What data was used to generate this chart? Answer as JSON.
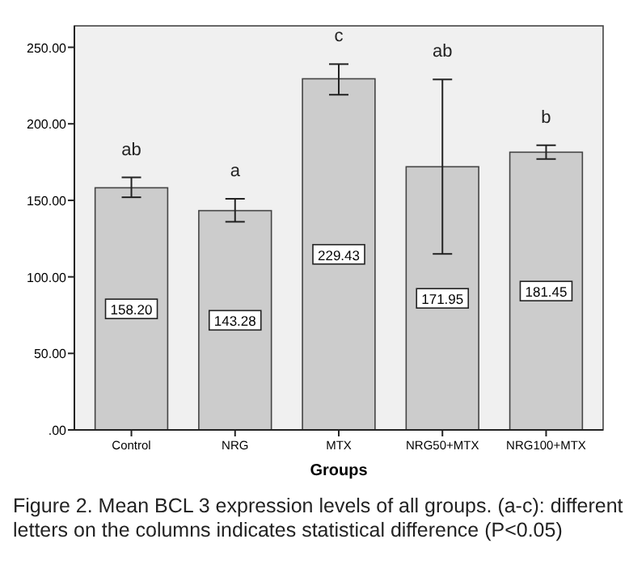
{
  "chart_data": {
    "type": "bar",
    "xlabel": "Groups",
    "categories": [
      "Control",
      "NRG",
      "MTX",
      "NRG50+MTX",
      "NRG100+MTX"
    ],
    "values": [
      158.2,
      143.28,
      229.43,
      171.95,
      181.45
    ],
    "color": "#cccccc",
    "value_labels": [
      "158.20",
      "143.28",
      "229.43",
      "171.95",
      "181.45"
    ],
    "errors": [
      [
        152,
        165
      ],
      [
        136,
        151
      ],
      [
        219,
        239
      ],
      [
        115,
        229
      ],
      [
        177,
        186
      ]
    ],
    "ylim": [
      0,
      264
    ],
    "yticks": [
      {
        "value": 0,
        "label": ".00"
      },
      {
        "value": 50,
        "label": "50.00"
      },
      {
        "value": 100,
        "label": "100.00"
      },
      {
        "value": 150,
        "label": "150.00"
      },
      {
        "value": 200,
        "label": "200.00"
      },
      {
        "value": 250,
        "label": "250.00"
      }
    ],
    "annotations": [
      "ab",
      "a",
      "c",
      "ab",
      "b",
      "Figure 2.  Mean BCL 3 expression levels of all groups. (a-c): different letters on the columns indicates statistical difference (P<0.05)"
    ]
  }
}
